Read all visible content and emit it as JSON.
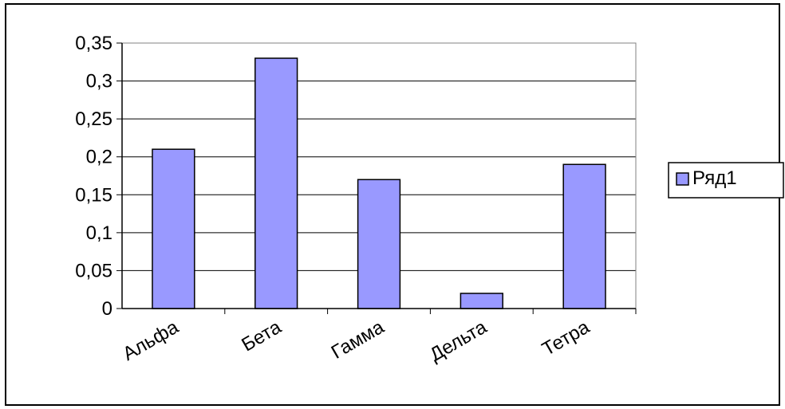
{
  "chart_data": {
    "type": "bar",
    "title": "",
    "xlabel": "",
    "ylabel": "",
    "categories": [
      "Альфа",
      "Бета",
      "Гамма",
      "Дельта",
      "Тетра"
    ],
    "series": [
      {
        "name": "Ряд1",
        "values": [
          0.21,
          0.33,
          0.17,
          0.02,
          0.19
        ],
        "color": "#9999ff"
      }
    ],
    "ylim": [
      0,
      0.35
    ],
    "yticks": [
      0,
      0.05,
      0.1,
      0.15,
      0.2,
      0.25,
      0.3,
      0.35
    ],
    "ytick_labels": [
      "0",
      "0,05",
      "0,1",
      "0,15",
      "0,2",
      "0,25",
      "0,3",
      "0,35"
    ],
    "grid": true,
    "legend_position": "right"
  },
  "colors": {
    "plot_background": "#ffffff",
    "bar_fill": "#9999ff",
    "axis": "#000000",
    "gridline": "#000000"
  }
}
